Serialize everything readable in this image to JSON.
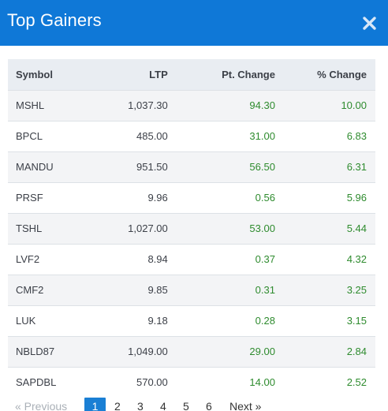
{
  "modal": {
    "title": "Top Gainers",
    "close_icon": "close-icon"
  },
  "table": {
    "headers": {
      "symbol": "Symbol",
      "ltp": "LTP",
      "pt_change": "Pt. Change",
      "pct_change": "% Change"
    },
    "rows": [
      {
        "symbol": "MSHL",
        "ltp": "1,037.30",
        "pt_change": "94.30",
        "pct_change": "10.00"
      },
      {
        "symbol": "BPCL",
        "ltp": "485.00",
        "pt_change": "31.00",
        "pct_change": "6.83"
      },
      {
        "symbol": "MANDU",
        "ltp": "951.50",
        "pt_change": "56.50",
        "pct_change": "6.31"
      },
      {
        "symbol": "PRSF",
        "ltp": "9.96",
        "pt_change": "0.56",
        "pct_change": "5.96"
      },
      {
        "symbol": "TSHL",
        "ltp": "1,027.00",
        "pt_change": "53.00",
        "pct_change": "5.44"
      },
      {
        "symbol": "LVF2",
        "ltp": "8.94",
        "pt_change": "0.37",
        "pct_change": "4.32"
      },
      {
        "symbol": "CMF2",
        "ltp": "9.85",
        "pt_change": "0.31",
        "pct_change": "3.25"
      },
      {
        "symbol": "LUK",
        "ltp": "9.18",
        "pt_change": "0.28",
        "pct_change": "3.15"
      },
      {
        "symbol": "NBLD87",
        "ltp": "1,049.00",
        "pt_change": "29.00",
        "pct_change": "2.84"
      },
      {
        "symbol": "SAPDBL",
        "ltp": "570.00",
        "pt_change": "14.00",
        "pct_change": "2.52"
      }
    ]
  },
  "pagination": {
    "previous": "« Previous",
    "pages": [
      "1",
      "2",
      "3",
      "4",
      "5",
      "6"
    ],
    "active_page": "1",
    "next": "Next »"
  },
  "colors": {
    "header_bg": "#0f78d7",
    "gain_green": "#2e8b2e",
    "active_page_bg": "#1a7fd4"
  }
}
